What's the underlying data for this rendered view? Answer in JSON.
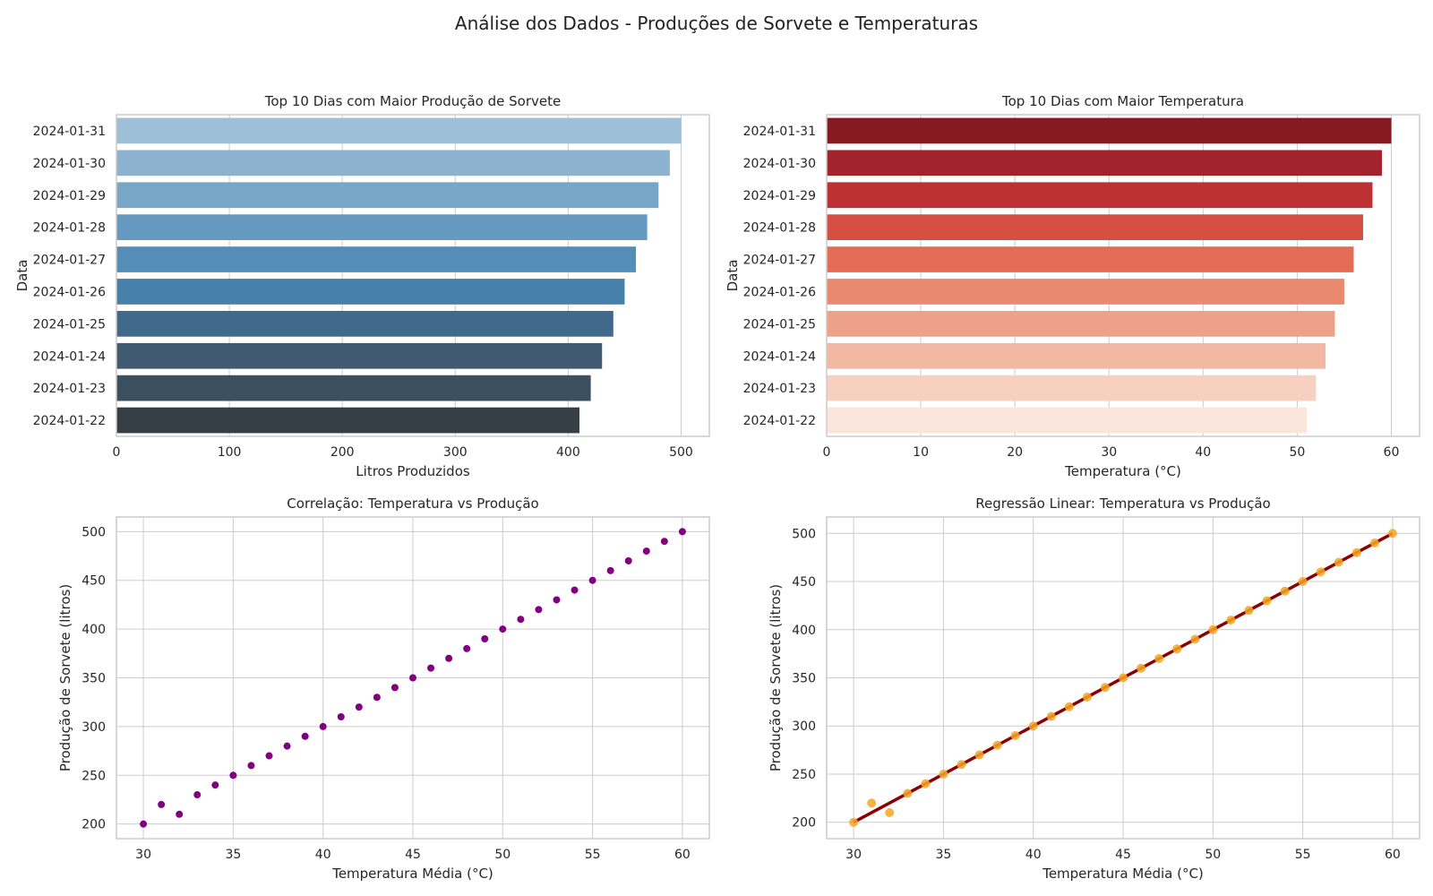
{
  "figure_title": "Análise dos Dados - Produções de Sorvete e Temperaturas",
  "chart_data": [
    {
      "type": "bar",
      "orientation": "horizontal",
      "title": "Top 10 Dias com Maior Produção de Sorvete",
      "xlabel": "Litros Produzidos",
      "ylabel": "Data",
      "categories": [
        "2024-01-31",
        "2024-01-30",
        "2024-01-29",
        "2024-01-28",
        "2024-01-27",
        "2024-01-26",
        "2024-01-25",
        "2024-01-24",
        "2024-01-23",
        "2024-01-22"
      ],
      "values": [
        500,
        490,
        480,
        470,
        460,
        450,
        440,
        430,
        420,
        410
      ],
      "xlim": [
        0,
        525
      ],
      "xticks": [
        0,
        100,
        200,
        300,
        400,
        500
      ],
      "colors": [
        "#9dbfd8",
        "#8bb3d0",
        "#78a6c7",
        "#6699c0",
        "#548db8",
        "#4780ab",
        "#41698b",
        "#405b71",
        "#3c4f5f",
        "#373f46"
      ],
      "grid": true
    },
    {
      "type": "bar",
      "orientation": "horizontal",
      "title": "Top 10 Dias com Maior Temperatura",
      "xlabel": "Temperatura (°C)",
      "ylabel": "Data",
      "categories": [
        "2024-01-31",
        "2024-01-30",
        "2024-01-29",
        "2024-01-28",
        "2024-01-27",
        "2024-01-26",
        "2024-01-25",
        "2024-01-24",
        "2024-01-23",
        "2024-01-22"
      ],
      "values": [
        60,
        59,
        58,
        57,
        56,
        55,
        54,
        53,
        52,
        51
      ],
      "xlim": [
        0,
        63
      ],
      "xticks": [
        0,
        10,
        20,
        30,
        40,
        50,
        60
      ],
      "colors": [
        "#861a22",
        "#a3232c",
        "#bd3134",
        "#d44e41",
        "#e26c55",
        "#e98970",
        "#eca188",
        "#f2b8a2",
        "#f6d0c1",
        "#fae5dc"
      ],
      "grid": true
    },
    {
      "type": "scatter",
      "title": "Correlação: Temperatura vs Produção",
      "xlabel": "Temperatura Média (°C)",
      "ylabel": "Produção de Sorvete (litros)",
      "x": [
        30,
        31,
        32,
        33,
        34,
        35,
        36,
        37,
        38,
        39,
        40,
        41,
        42,
        43,
        44,
        45,
        46,
        47,
        48,
        49,
        50,
        51,
        52,
        53,
        54,
        55,
        56,
        57,
        58,
        59,
        60
      ],
      "y": [
        200,
        220,
        210,
        230,
        240,
        250,
        260,
        270,
        280,
        290,
        300,
        310,
        320,
        330,
        340,
        350,
        360,
        370,
        380,
        390,
        400,
        410,
        420,
        430,
        440,
        450,
        460,
        470,
        480,
        490,
        500
      ],
      "xlim": [
        28.5,
        61.5
      ],
      "ylim": [
        185,
        515
      ],
      "xticks": [
        30,
        35,
        40,
        45,
        50,
        55,
        60
      ],
      "yticks": [
        200,
        250,
        300,
        350,
        400,
        450,
        500
      ],
      "color": "#800080",
      "grid": true
    },
    {
      "type": "scatter",
      "title": "Regressão Linear: Temperatura vs Produção",
      "xlabel": "Temperatura Média (°C)",
      "ylabel": "Produção de Sorvete (litros)",
      "x": [
        30,
        31,
        32,
        33,
        34,
        35,
        36,
        37,
        38,
        39,
        40,
        41,
        42,
        43,
        44,
        45,
        46,
        47,
        48,
        49,
        50,
        51,
        52,
        53,
        54,
        55,
        56,
        57,
        58,
        59,
        60
      ],
      "y": [
        200,
        220,
        210,
        230,
        240,
        250,
        260,
        270,
        280,
        290,
        300,
        310,
        320,
        330,
        340,
        350,
        360,
        370,
        380,
        390,
        400,
        410,
        420,
        430,
        440,
        450,
        460,
        470,
        480,
        490,
        500
      ],
      "regression_line": {
        "x": [
          30,
          60
        ],
        "y": [
          200,
          500
        ]
      },
      "xlim": [
        28.5,
        61.5
      ],
      "ylim": [
        183,
        517
      ],
      "xticks": [
        30,
        35,
        40,
        45,
        50,
        55,
        60
      ],
      "yticks": [
        200,
        250,
        300,
        350,
        400,
        450,
        500
      ],
      "color": "#f5a623",
      "line_color": "#8b0000",
      "grid": true
    }
  ]
}
